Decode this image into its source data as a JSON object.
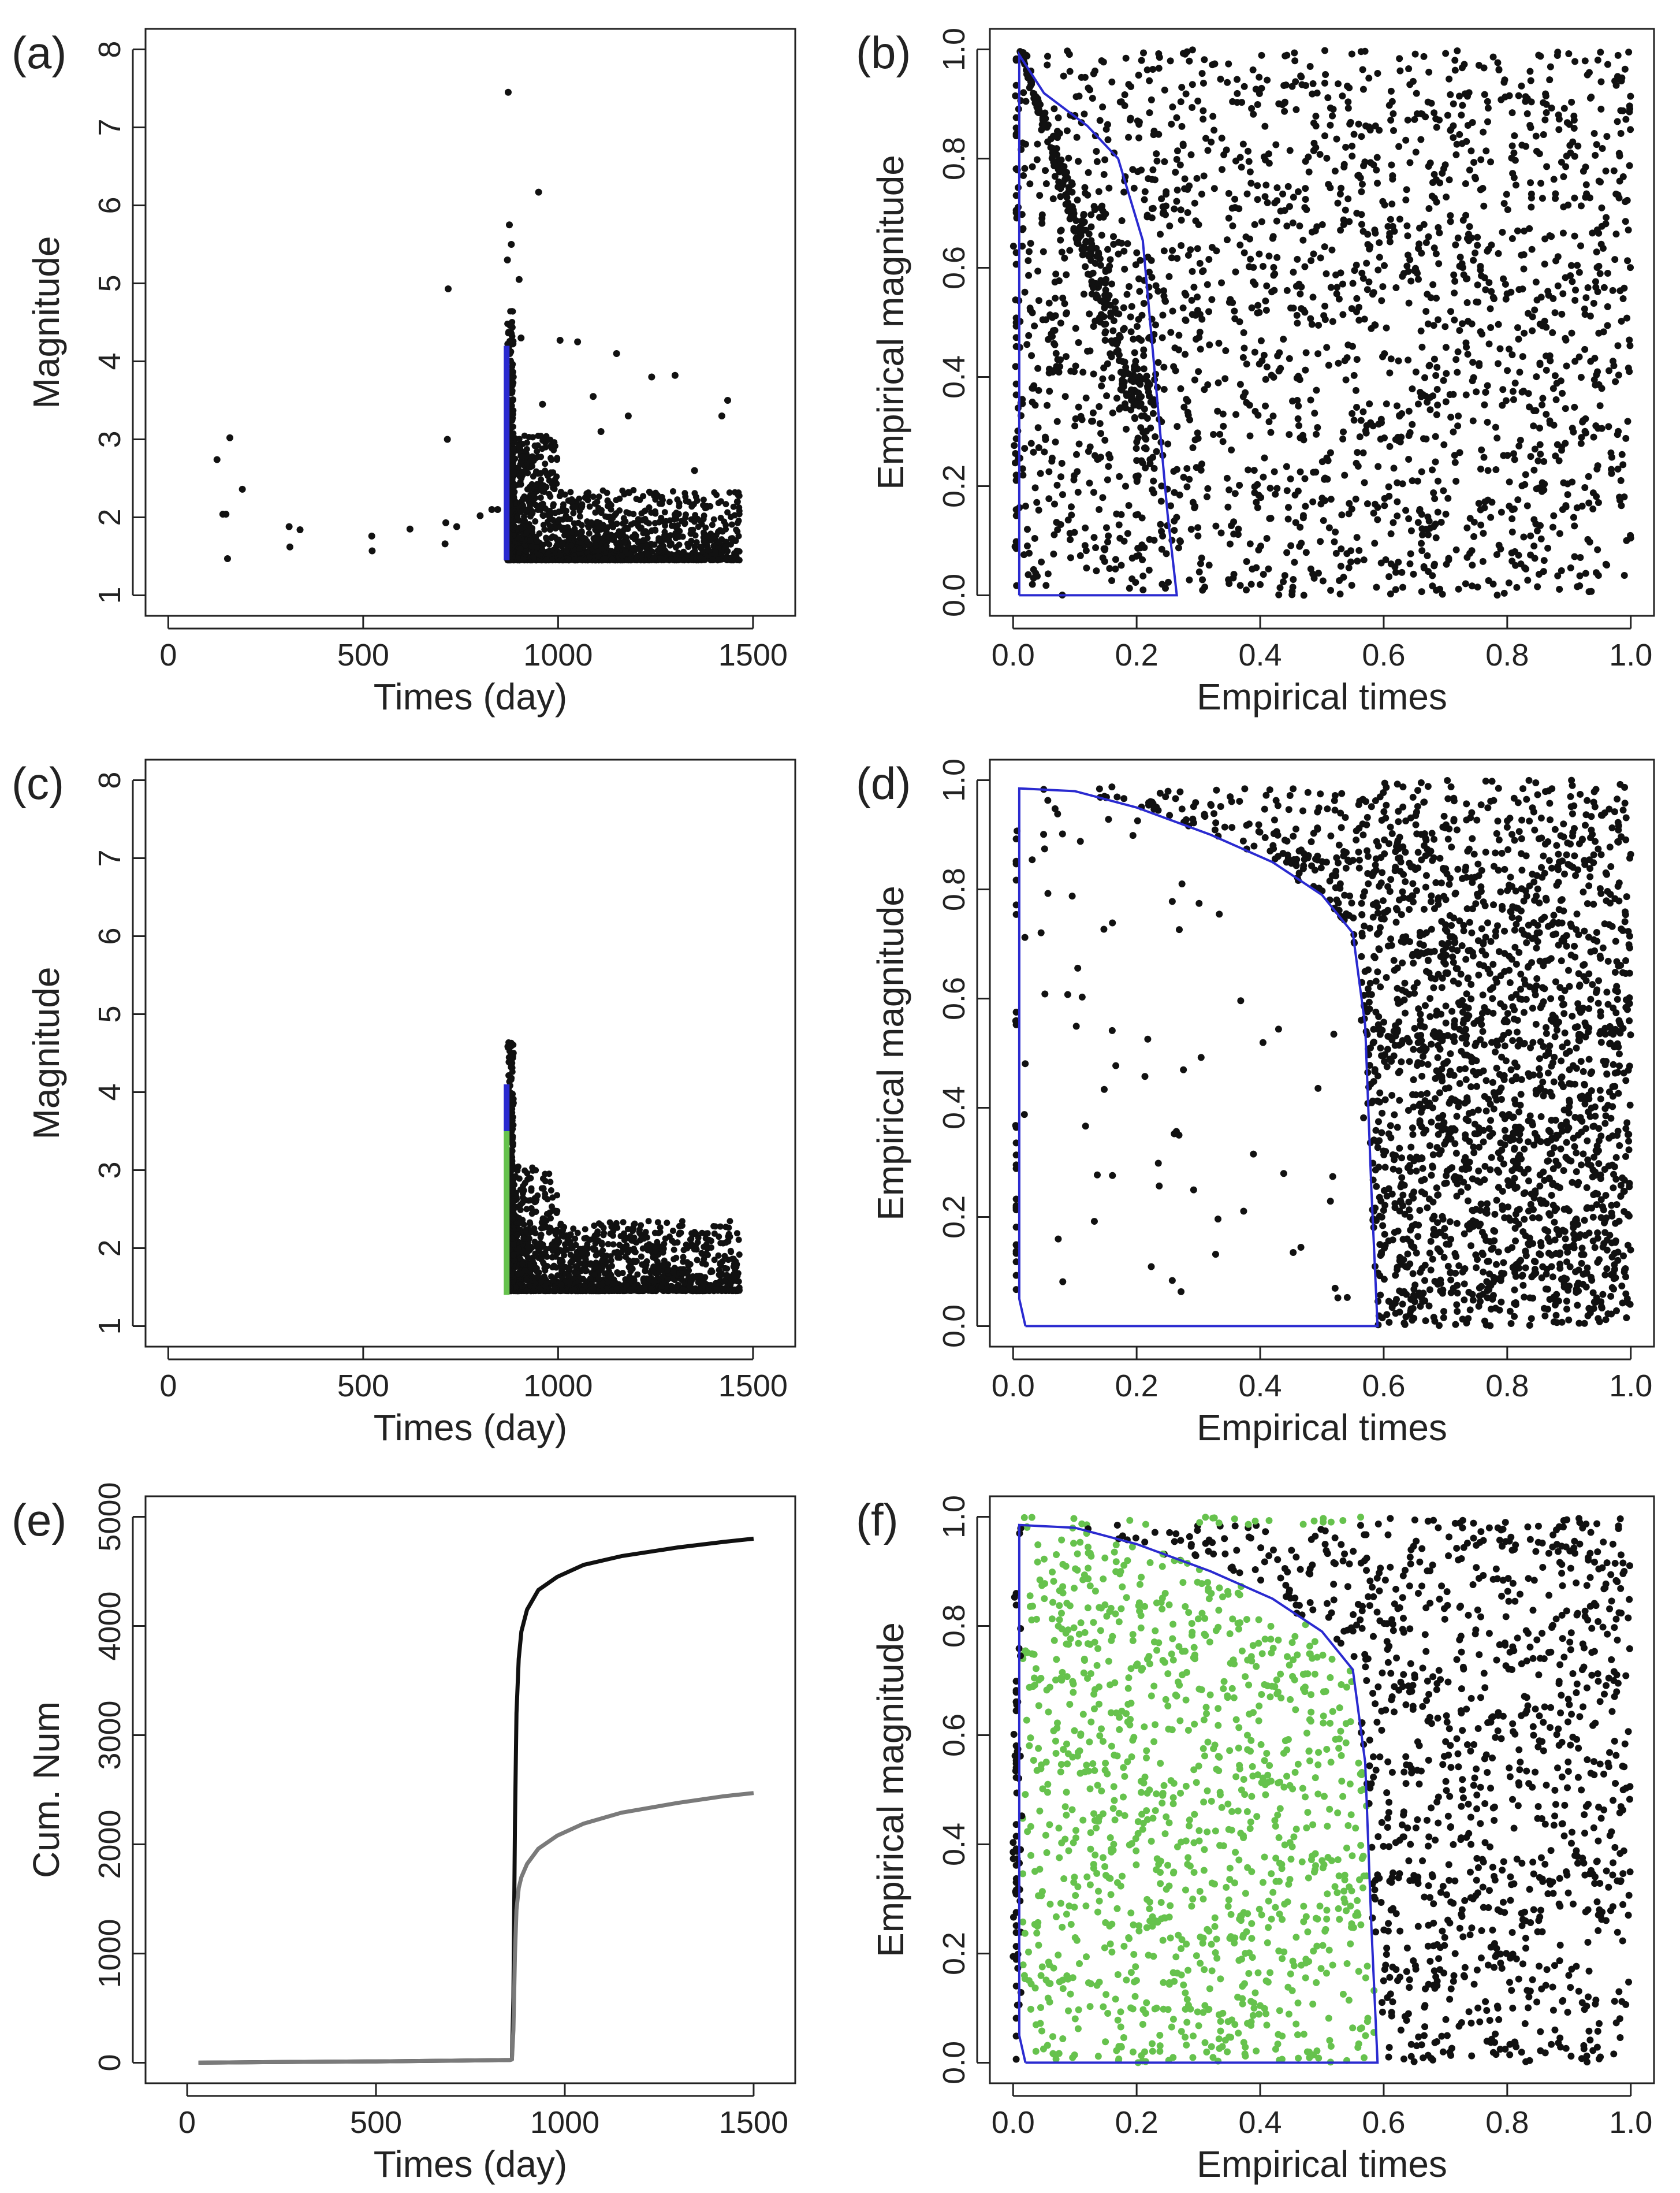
{
  "figure": {
    "panels": [
      {
        "id": "a",
        "tag": "(a)",
        "xlabel": "Times (day)",
        "ylabel": "Magnitude"
      },
      {
        "id": "b",
        "tag": "(b)",
        "xlabel": "Empirical times",
        "ylabel": "Empirical magnitude"
      },
      {
        "id": "c",
        "tag": "(c)",
        "xlabel": "Times (day)",
        "ylabel": "Magnitude"
      },
      {
        "id": "d",
        "tag": "(d)",
        "xlabel": "Empirical times",
        "ylabel": "Empirical magnitude"
      },
      {
        "id": "e",
        "tag": "(e)",
        "xlabel": "Times (day)",
        "ylabel": "Cum. Num"
      },
      {
        "id": "f",
        "tag": "(f)",
        "xlabel": "Empirical times",
        "ylabel": "Empirical magnitude"
      }
    ]
  },
  "colors": {
    "points": "#111111",
    "boundary": "#2a2ad0",
    "green": "#66c24d",
    "cum_all": "#111111",
    "cum_selected": "#7a7a7a"
  },
  "chart_data": [
    {
      "panel": "a",
      "type": "scatter",
      "xlim": [
        0,
        1550
      ],
      "ylim": [
        1,
        8
      ],
      "xticks": [
        0,
        500,
        1000,
        1500
      ],
      "yticks": [
        1,
        2,
        3,
        4,
        5,
        6,
        7,
        8
      ],
      "points": [
        [
          125,
          2.74
        ],
        [
          140,
          2.04
        ],
        [
          148,
          2.04
        ],
        [
          152,
          1.47
        ],
        [
          158,
          3.02
        ],
        [
          190,
          2.36
        ],
        [
          310,
          1.88
        ],
        [
          312,
          1.62
        ],
        [
          338,
          1.84
        ],
        [
          522,
          1.76
        ],
        [
          523,
          1.57
        ],
        [
          620,
          1.85
        ],
        [
          710,
          1.66
        ],
        [
          712,
          1.93
        ],
        [
          716,
          3.0
        ],
        [
          718,
          4.93
        ],
        [
          740,
          1.88
        ],
        [
          800,
          2.02
        ],
        [
          830,
          2.1
        ],
        [
          845,
          2.1
        ],
        [
          870,
          5.3
        ],
        [
          872,
          7.45
        ],
        [
          875,
          5.75
        ],
        [
          880,
          5.5
        ],
        [
          885,
          3.8
        ],
        [
          900,
          5.05
        ],
        [
          905,
          4.3
        ],
        [
          950,
          6.17
        ],
        [
          960,
          3.45
        ],
        [
          1005,
          4.27
        ],
        [
          1050,
          4.25
        ],
        [
          1090,
          3.55
        ],
        [
          1110,
          3.1
        ],
        [
          1150,
          4.1
        ],
        [
          1180,
          3.3
        ],
        [
          1240,
          3.8
        ],
        [
          1300,
          3.82
        ],
        [
          1350,
          2.6
        ],
        [
          1420,
          3.3
        ],
        [
          1435,
          3.5
        ],
        [
          1455,
          1.7
        ],
        [
          1460,
          2.2
        ]
      ],
      "series_note": "",
      "shading": [
        {
          "x": 868,
          "y0": 1.45,
          "y1": 4.2,
          "color": "blue"
        }
      ]
    },
    {
      "panel": "b",
      "type": "scatter",
      "xlim": [
        0,
        1
      ],
      "ylim": [
        0,
        1
      ],
      "xticks": [
        0.0,
        0.2,
        0.4,
        0.6,
        0.8,
        1.0
      ],
      "yticks": [
        0.0,
        0.2,
        0.4,
        0.6,
        0.8,
        1.0
      ],
      "boundary": [
        [
          0.01,
          0.0
        ],
        [
          0.01,
          0.99
        ],
        [
          0.05,
          0.92
        ],
        [
          0.12,
          0.86
        ],
        [
          0.17,
          0.8
        ],
        [
          0.21,
          0.65
        ],
        [
          0.23,
          0.4
        ],
        [
          0.25,
          0.15
        ],
        [
          0.265,
          0.0
        ],
        [
          0.01,
          0.0
        ]
      ],
      "pattern": "uniform points, denser near the upper-left boundary"
    },
    {
      "panel": "c",
      "type": "scatter",
      "xlim": [
        0,
        1550
      ],
      "ylim": [
        1,
        8
      ],
      "xticks": [
        0,
        500,
        1000,
        1500
      ],
      "yticks": [
        1,
        2,
        3,
        4,
        5,
        6,
        7,
        8
      ],
      "shading": [
        {
          "x": 868,
          "y0": 1.4,
          "y1": 3.5,
          "color": "green"
        },
        {
          "x": 868,
          "y0": 3.5,
          "y1": 4.1,
          "color": "blue"
        }
      ]
    },
    {
      "panel": "d",
      "type": "scatter",
      "xlim": [
        0,
        1
      ],
      "ylim": [
        0,
        1
      ],
      "xticks": [
        0.0,
        0.2,
        0.4,
        0.6,
        0.8,
        1.0
      ],
      "yticks": [
        0.0,
        0.2,
        0.4,
        0.6,
        0.8,
        1.0
      ],
      "boundary": [
        [
          0.02,
          0.0
        ],
        [
          0.01,
          0.05
        ],
        [
          0.01,
          0.985
        ],
        [
          0.1,
          0.98
        ],
        [
          0.2,
          0.95
        ],
        [
          0.32,
          0.9
        ],
        [
          0.42,
          0.85
        ],
        [
          0.5,
          0.79
        ],
        [
          0.55,
          0.72
        ],
        [
          0.57,
          0.55
        ],
        [
          0.58,
          0.25
        ],
        [
          0.59,
          0.0
        ],
        [
          0.02,
          0.0
        ]
      ],
      "pattern": "points sparse inside the boundary, dense outside"
    },
    {
      "panel": "e",
      "type": "line",
      "xlim": [
        -50,
        1550
      ],
      "ylim": [
        0,
        5000
      ],
      "xticks": [
        0,
        500,
        1000,
        1500
      ],
      "yticks": [
        0,
        1000,
        2000,
        3000,
        4000,
        5000
      ],
      "series": [
        {
          "color": "black",
          "x": [
            30,
            200,
            500,
            700,
            855,
            860,
            864,
            868,
            872,
            878,
            885,
            900,
            930,
            980,
            1050,
            1150,
            1300,
            1420,
            1500
          ],
          "values": [
            0,
            5,
            12,
            18,
            25,
            30,
            600,
            2200,
            3200,
            3700,
            3950,
            4150,
            4330,
            4450,
            4560,
            4640,
            4720,
            4770,
            4800
          ]
        },
        {
          "color": "gray",
          "x": [
            30,
            200,
            500,
            700,
            855,
            860,
            864,
            868,
            872,
            878,
            885,
            900,
            930,
            980,
            1050,
            1150,
            1300,
            1420,
            1500
          ],
          "values": [
            0,
            5,
            12,
            18,
            25,
            30,
            300,
            1000,
            1400,
            1600,
            1700,
            1820,
            1960,
            2080,
            2190,
            2290,
            2380,
            2440,
            2470
          ]
        }
      ]
    },
    {
      "panel": "f",
      "type": "scatter",
      "xlim": [
        0,
        1
      ],
      "ylim": [
        0,
        1
      ],
      "xticks": [
        0.0,
        0.2,
        0.4,
        0.6,
        0.8,
        1.0
      ],
      "yticks": [
        0.0,
        0.2,
        0.4,
        0.6,
        0.8,
        1.0
      ],
      "boundary": [
        [
          0.02,
          0.0
        ],
        [
          0.01,
          0.05
        ],
        [
          0.01,
          0.985
        ],
        [
          0.1,
          0.98
        ],
        [
          0.2,
          0.95
        ],
        [
          0.32,
          0.9
        ],
        [
          0.42,
          0.85
        ],
        [
          0.5,
          0.79
        ],
        [
          0.55,
          0.72
        ],
        [
          0.57,
          0.55
        ],
        [
          0.58,
          0.25
        ],
        [
          0.59,
          0.0
        ],
        [
          0.02,
          0.0
        ]
      ],
      "pattern": "green points fill the region inside the boundary; black points outside"
    }
  ]
}
